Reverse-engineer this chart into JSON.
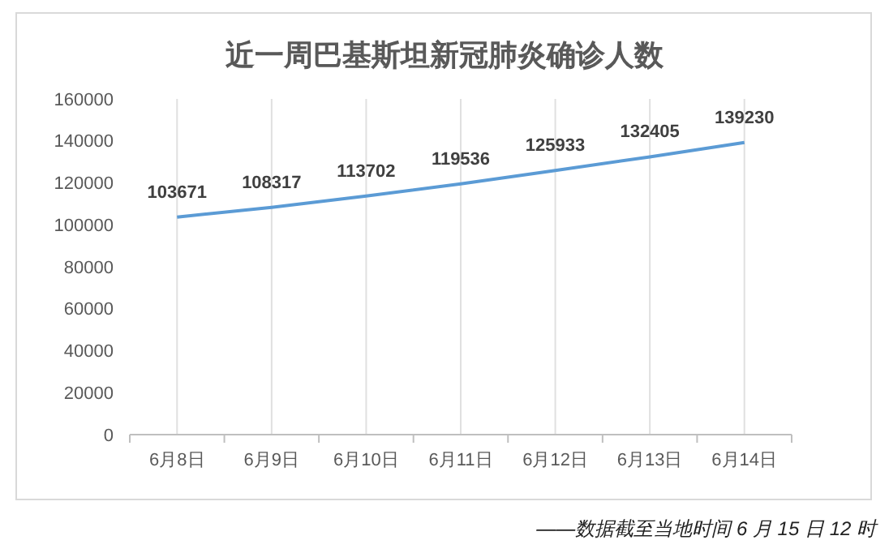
{
  "chart_data": {
    "type": "line",
    "title": "近一周巴基斯坦新冠肺炎确诊人数",
    "categories": [
      "6月8日",
      "6月9日",
      "6月10日",
      "6月11日",
      "6月12日",
      "6月13日",
      "6月14日"
    ],
    "series": [
      {
        "color": "#5b9bd5",
        "values": [
          103671,
          108317,
          113702,
          119536,
          125933,
          132405,
          139230
        ]
      }
    ],
    "ylim": [
      0,
      160000
    ],
    "yticks": [
      0,
      20000,
      40000,
      60000,
      80000,
      100000,
      120000,
      140000,
      160000
    ],
    "grid": "x",
    "data_labels": true,
    "marker": "none",
    "line_style": "solid",
    "annotations": [
      "——数据截至当地时间 6 月 15 日 12 时"
    ]
  }
}
